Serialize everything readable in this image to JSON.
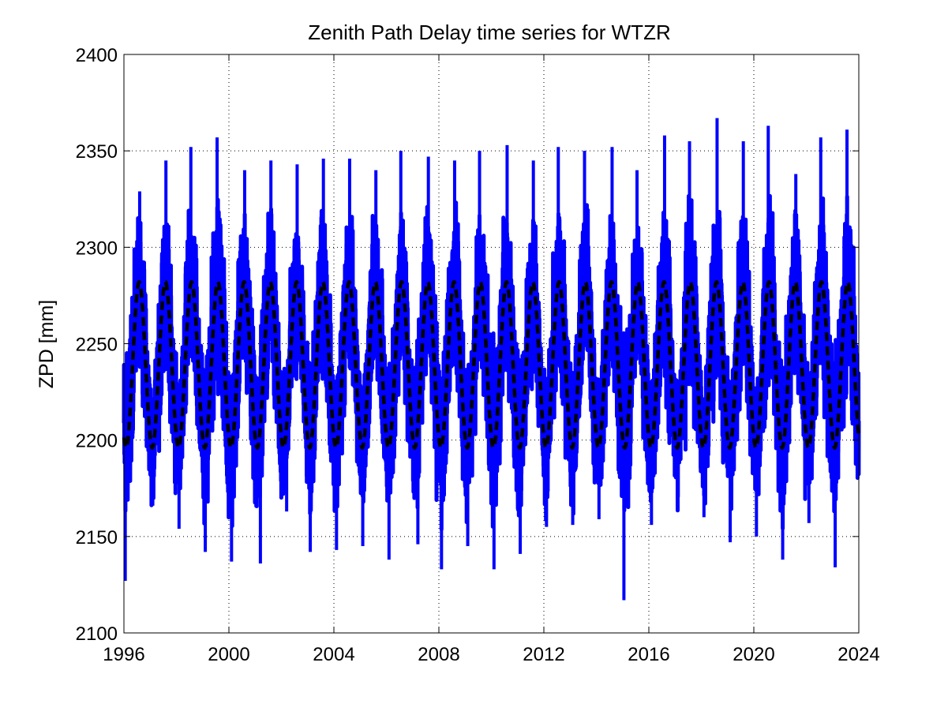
{
  "chart_data": {
    "type": "line",
    "title": "Zenith Path Delay time series for WTZR",
    "xlabel": "",
    "ylabel": "ZPD [mm]",
    "xlim": [
      1996,
      2024
    ],
    "ylim": [
      2100,
      2400
    ],
    "x_ticks": [
      "1996",
      "2000",
      "2004",
      "2008",
      "2012",
      "2016",
      "2020",
      "2024"
    ],
    "y_ticks": [
      "2100",
      "2150",
      "2200",
      "2250",
      "2300",
      "2350",
      "2400"
    ],
    "grid": true,
    "legend": "none",
    "series": [
      {
        "style": "solid",
        "color": "#0000ff",
        "sampling": "daily, summarized as yearly extremes",
        "annual_peaks": [
          [
            1996.6,
            2329
          ],
          [
            1997.6,
            2345
          ],
          [
            1998.55,
            2352
          ],
          [
            1999.55,
            2357
          ],
          [
            2000.6,
            2340
          ],
          [
            2001.6,
            2345
          ],
          [
            2002.6,
            2343
          ],
          [
            2003.6,
            2346
          ],
          [
            2004.6,
            2346
          ],
          [
            2005.6,
            2340
          ],
          [
            2006.55,
            2350
          ],
          [
            2007.6,
            2347
          ],
          [
            2008.6,
            2345
          ],
          [
            2009.55,
            2350
          ],
          [
            2010.6,
            2353
          ],
          [
            2011.6,
            2345
          ],
          [
            2012.55,
            2352
          ],
          [
            2013.55,
            2350
          ],
          [
            2014.6,
            2352
          ],
          [
            2015.55,
            2340
          ],
          [
            2016.6,
            2358
          ],
          [
            2017.55,
            2355
          ],
          [
            2018.6,
            2367
          ],
          [
            2019.6,
            2355
          ],
          [
            2020.55,
            2363
          ],
          [
            2021.6,
            2338
          ],
          [
            2022.55,
            2357
          ],
          [
            2023.55,
            2361
          ]
        ],
        "annual_troughs": [
          [
            1996.05,
            2127
          ],
          [
            1997.1,
            2166
          ],
          [
            1998.1,
            2154
          ],
          [
            1999.1,
            2142
          ],
          [
            2000.1,
            2137
          ],
          [
            2001.2,
            2136
          ],
          [
            2002.2,
            2163
          ],
          [
            2003.1,
            2142
          ],
          [
            2004.1,
            2143
          ],
          [
            2005.1,
            2145
          ],
          [
            2006.1,
            2138
          ],
          [
            2007.2,
            2146
          ],
          [
            2008.1,
            2133
          ],
          [
            2009.1,
            2145
          ],
          [
            2010.1,
            2133
          ],
          [
            2011.1,
            2141
          ],
          [
            2012.1,
            2155
          ],
          [
            2013.1,
            2156
          ],
          [
            2014.1,
            2159
          ],
          [
            2015.05,
            2117
          ],
          [
            2016.1,
            2156
          ],
          [
            2017.1,
            2166
          ],
          [
            2018.1,
            2160
          ],
          [
            2019.1,
            2147
          ],
          [
            2020.1,
            2150
          ],
          [
            2021.1,
            2138
          ],
          [
            2022.1,
            2157
          ],
          [
            2023.1,
            2134
          ]
        ],
        "last_value": [
          2024.0,
          2264
        ]
      },
      {
        "style": "dashed",
        "color": "#000000",
        "model": "annual sinusoid",
        "mean": 2239,
        "max": 2282,
        "min": 2196,
        "peak_phase_year_fraction": 0.58
      }
    ]
  }
}
